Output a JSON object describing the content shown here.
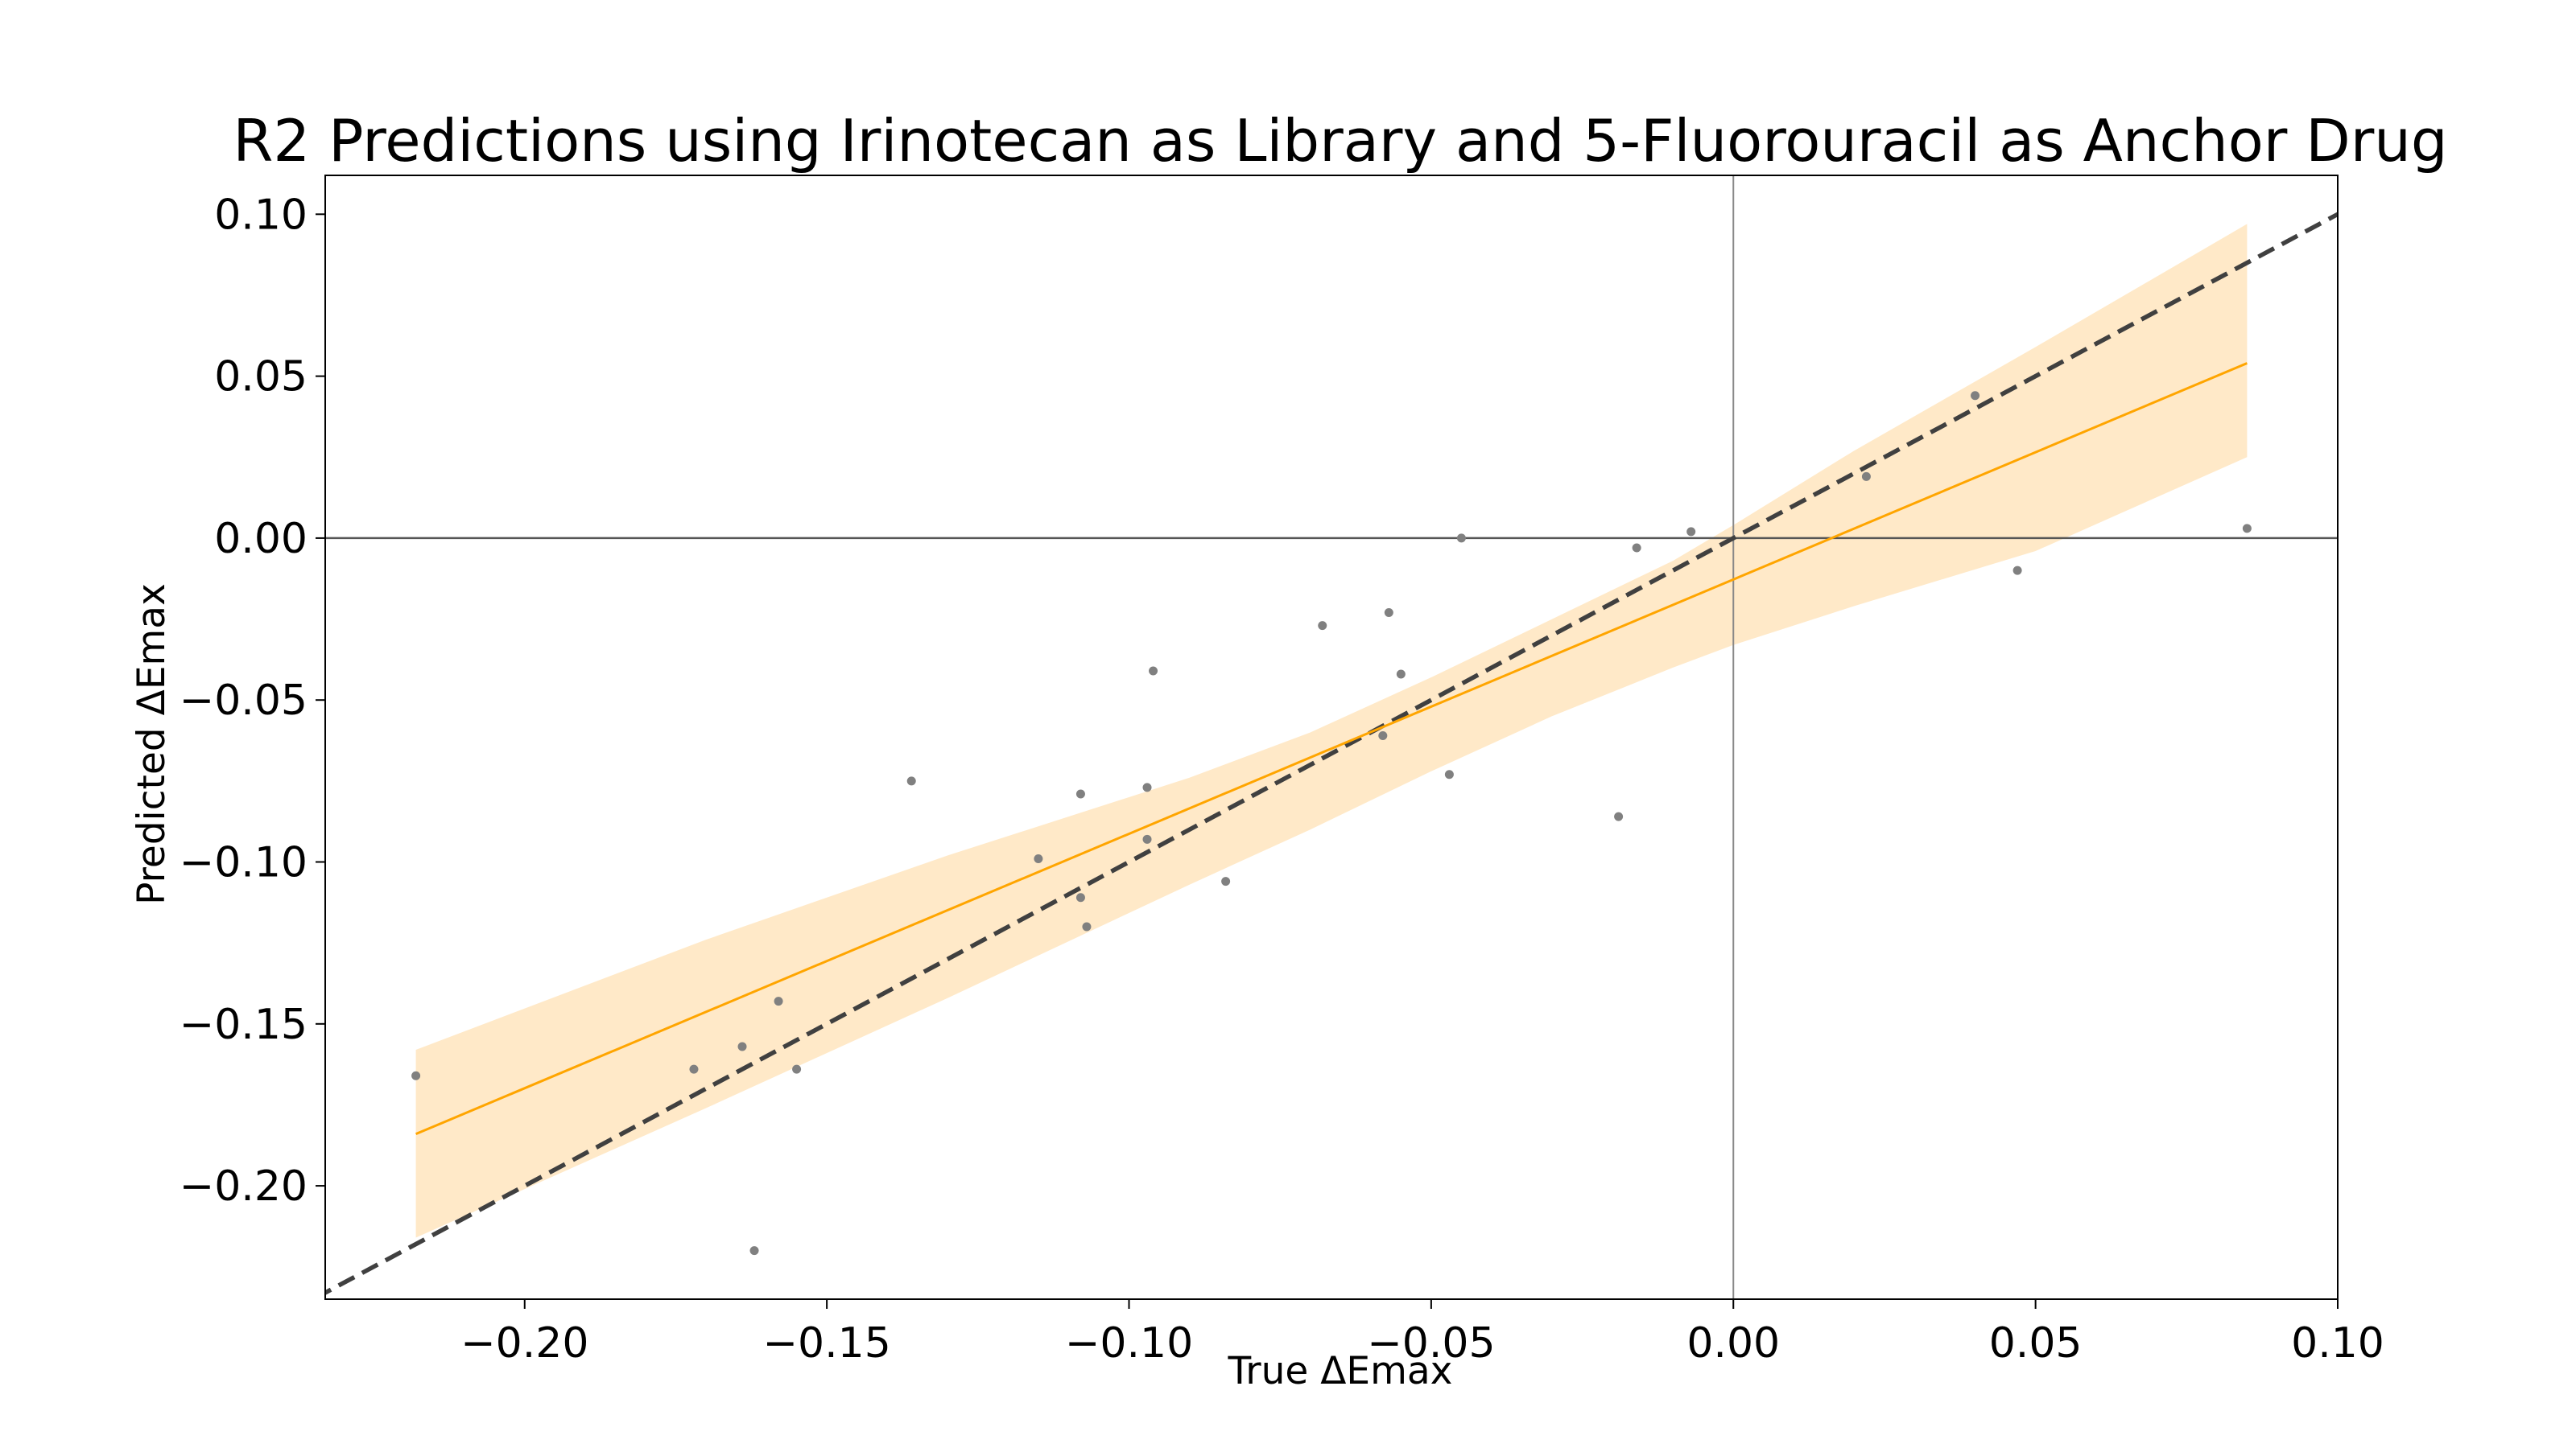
{
  "chart_data": {
    "type": "scatter",
    "title": "R2 Predictions using Irinotecan as Library and 5-Fluorouracil as Anchor Drug",
    "xlabel": "True ΔEmax",
    "ylabel": "Predicted ΔEmax",
    "xlim": [
      -0.233,
      0.1
    ],
    "ylim": [
      -0.235,
      0.112
    ],
    "xticks": [
      -0.2,
      -0.15,
      -0.1,
      -0.05,
      0.0,
      0.05,
      0.1
    ],
    "xtick_labels": [
      "−0.20",
      "−0.15",
      "−0.10",
      "−0.05",
      "0.00",
      "0.05",
      "0.10"
    ],
    "yticks": [
      -0.2,
      -0.15,
      -0.1,
      -0.05,
      0.0,
      0.05,
      0.1
    ],
    "ytick_labels": [
      "−0.20",
      "−0.15",
      "−0.10",
      "−0.05",
      "0.00",
      "0.05",
      "0.10"
    ],
    "grid": false,
    "legend": "none",
    "reference_lines": {
      "horizontal_zero": true,
      "vertical_zero": true,
      "identity_dashed": true
    },
    "points": [
      {
        "x": -0.218,
        "y": -0.166
      },
      {
        "x": -0.172,
        "y": -0.164
      },
      {
        "x": -0.164,
        "y": -0.157
      },
      {
        "x": -0.162,
        "y": -0.22
      },
      {
        "x": -0.158,
        "y": -0.143
      },
      {
        "x": -0.155,
        "y": -0.164
      },
      {
        "x": -0.136,
        "y": -0.075
      },
      {
        "x": -0.115,
        "y": -0.099
      },
      {
        "x": -0.108,
        "y": -0.079
      },
      {
        "x": -0.108,
        "y": -0.111
      },
      {
        "x": -0.107,
        "y": -0.12
      },
      {
        "x": -0.097,
        "y": -0.077
      },
      {
        "x": -0.097,
        "y": -0.093
      },
      {
        "x": -0.096,
        "y": -0.041
      },
      {
        "x": -0.084,
        "y": -0.106
      },
      {
        "x": -0.068,
        "y": -0.027
      },
      {
        "x": -0.058,
        "y": -0.061
      },
      {
        "x": -0.057,
        "y": -0.023
      },
      {
        "x": -0.055,
        "y": -0.042
      },
      {
        "x": -0.047,
        "y": -0.073
      },
      {
        "x": -0.045,
        "y": 0.0
      },
      {
        "x": -0.019,
        "y": -0.086
      },
      {
        "x": -0.016,
        "y": -0.003
      },
      {
        "x": -0.007,
        "y": 0.002
      },
      {
        "x": 0.022,
        "y": 0.019
      },
      {
        "x": 0.04,
        "y": 0.044
      },
      {
        "x": 0.047,
        "y": -0.01
      },
      {
        "x": 0.085,
        "y": 0.003
      }
    ],
    "regression_line": {
      "x": [
        -0.218,
        0.085
      ],
      "y": [
        -0.184,
        0.054
      ]
    },
    "confidence_band": {
      "x": [
        -0.218,
        -0.17,
        -0.13,
        -0.09,
        -0.07,
        -0.05,
        -0.03,
        -0.01,
        0.0,
        0.02,
        0.05,
        0.085
      ],
      "lower": [
        -0.216,
        -0.176,
        -0.142,
        -0.107,
        -0.09,
        -0.072,
        -0.055,
        -0.04,
        -0.033,
        -0.021,
        -0.004,
        0.025
      ],
      "upper": [
        -0.158,
        -0.124,
        -0.098,
        -0.074,
        -0.06,
        -0.043,
        -0.025,
        -0.007,
        0.004,
        0.027,
        0.059,
        0.097
      ]
    },
    "colors": {
      "points": "#808080",
      "regression": "#FFA500",
      "band": "#FFE9C8",
      "identity": "#404040",
      "zero_lines": "#555555",
      "axes": "#000000"
    }
  }
}
